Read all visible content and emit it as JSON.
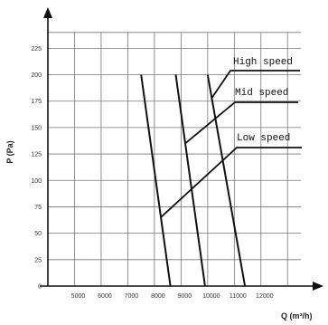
{
  "chart_data": {
    "type": "line",
    "title": "",
    "xlabel": "Q (m³/h)",
    "ylabel": "P (Pa)",
    "x_ticks": [
      "5000",
      "6000",
      "7000",
      "8000",
      "9000",
      "10000",
      "11000",
      "12000"
    ],
    "y_ticks": [
      "0",
      "25",
      "50",
      "75",
      "100",
      "125",
      "150",
      "175",
      "200",
      "225"
    ],
    "xlim": [
      4000,
      13500
    ],
    "ylim": [
      0,
      245
    ],
    "grid": true,
    "series": [
      {
        "name": "Low speed",
        "points": [
          [
            7500,
            200
          ],
          [
            8600,
            0
          ]
        ]
      },
      {
        "name": "Mid speed",
        "points": [
          [
            8800,
            200
          ],
          [
            9900,
            0
          ]
        ]
      },
      {
        "name": "High speed",
        "points": [
          [
            10000,
            200
          ],
          [
            11400,
            0
          ]
        ]
      }
    ],
    "annotations": [
      {
        "text": "High speed",
        "series": "High speed"
      },
      {
        "text": "Mid speed",
        "series": "Mid speed"
      },
      {
        "text": "Low speed",
        "series": "Low speed"
      }
    ]
  }
}
